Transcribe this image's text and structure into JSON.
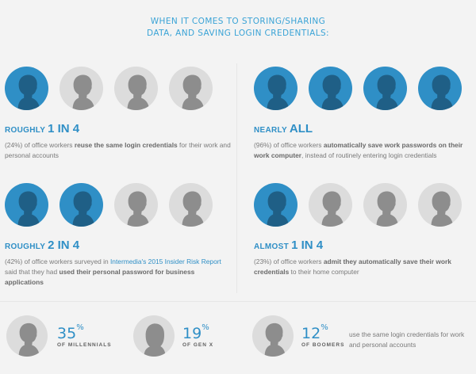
{
  "header": {
    "line1": "WHEN IT COMES TO STORING/SHARING",
    "line2": "DATA, AND SAVING LOGIN CREDENTIALS:"
  },
  "colors": {
    "accent": "#2f8fc6",
    "inactive": "#dcdcdc",
    "background": "#f3f3f3"
  },
  "stats": [
    {
      "heading_prefix": "ROUGHLY ",
      "heading_big": "1 in 4",
      "highlighted_of_4": 1,
      "pct": "(24%)",
      "pre": " of office workers ",
      "bold": "reuse the same login credentials",
      "post": " for their work and personal accounts"
    },
    {
      "heading_prefix": "NEARLY ",
      "heading_big": "All",
      "highlighted_of_4": 4,
      "pct": "(96%)",
      "pre": " of office workers ",
      "bold": "automatically save work passwords on their work computer",
      "post": ", instead of routinely entering login credentials"
    },
    {
      "heading_prefix": "ROUGHLY ",
      "heading_big": "2 in 4",
      "highlighted_of_4": 2,
      "pct": "(42%)",
      "pre": " of office workers surveyed in ",
      "link": "Intermedia's 2015 Insider Risk Report",
      "mid": " said that they had ",
      "bold": "used their personal password for business applications",
      "post": ""
    },
    {
      "heading_prefix": "ALMOST ",
      "heading_big": "1 in 4",
      "highlighted_of_4": 1,
      "pct": "(23%)",
      "pre": " of office workers ",
      "bold": "admit they automatically save their work credentials",
      "post": " to their home computer"
    }
  ],
  "generations": [
    {
      "pct": "35",
      "sym": "%",
      "label": "OF MILLENNIALS",
      "icon": "male-silhouette-icon"
    },
    {
      "pct": "19",
      "sym": "%",
      "label": "OF GEN X",
      "icon": "female-silhouette-icon"
    },
    {
      "pct": "12",
      "sym": "%",
      "label": "OF BOOMERS",
      "icon": "male-silhouette-icon"
    }
  ],
  "generations_note": "use the same login credentials for work and personal accounts"
}
